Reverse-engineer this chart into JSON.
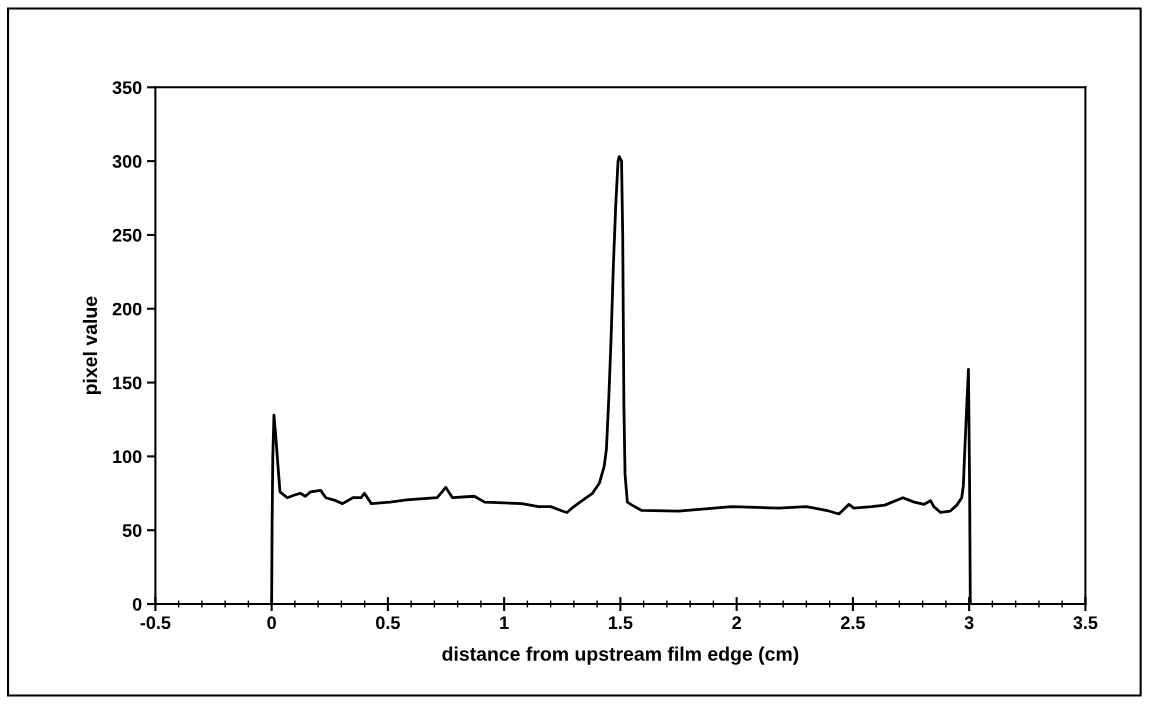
{
  "chart_data": {
    "type": "line",
    "xlabel": "distance from upstream film edge (cm)",
    "ylabel": "pixel value",
    "color": "#000000",
    "x": [
      0,
      0.002,
      0.005,
      0.01,
      0.017,
      0.029,
      0.036,
      0.067,
      0.102,
      0.123,
      0.145,
      0.167,
      0.211,
      0.233,
      0.276,
      0.305,
      0.349,
      0.385,
      0.399,
      0.429,
      0.509,
      0.581,
      0.712,
      0.749,
      0.778,
      0.872,
      0.916,
      1.076,
      1.148,
      1.2,
      1.25,
      1.27,
      1.3,
      1.34,
      1.38,
      1.41,
      1.43,
      1.44,
      1.45,
      1.46,
      1.47,
      1.48,
      1.49,
      1.495,
      1.505,
      1.51,
      1.515,
      1.52,
      1.53,
      1.55,
      1.59,
      1.75,
      1.98,
      2.18,
      2.3,
      2.385,
      2.44,
      2.483,
      2.504,
      2.581,
      2.637,
      2.715,
      2.764,
      2.806,
      2.834,
      2.848,
      2.877,
      2.919,
      2.947,
      2.968,
      2.975,
      2.982,
      2.99,
      2.997,
      3.002,
      3.005
    ],
    "values": [
      0,
      55,
      100,
      128,
      115,
      90,
      76,
      72,
      74,
      75,
      73,
      76,
      77,
      72,
      70,
      68,
      72,
      72,
      75,
      68,
      69,
      70.5,
      72,
      79,
      72,
      73,
      69,
      68,
      66,
      66,
      63,
      62,
      66,
      70.5,
      75,
      82,
      93,
      105,
      139,
      180,
      230,
      270,
      300,
      303,
      300,
      250,
      135,
      88,
      69,
      67,
      63.5,
      63,
      66,
      65,
      66,
      63.5,
      61,
      67.5,
      65,
      66,
      67,
      72,
      69,
      67.5,
      70,
      66,
      62,
      63,
      67,
      72,
      80,
      107,
      135,
      159,
      80,
      0
    ],
    "xlim": [
      -0.5,
      3.5
    ],
    "xticks": [
      -0.5,
      0,
      0.5,
      1,
      1.5,
      2,
      2.5,
      3,
      3.5
    ],
    "ylim": [
      0,
      350
    ],
    "yticks": [
      0,
      50,
      100,
      150,
      200,
      250,
      300,
      350
    ],
    "grid": false,
    "legend": false,
    "marker": "none",
    "line_style": "solid"
  }
}
